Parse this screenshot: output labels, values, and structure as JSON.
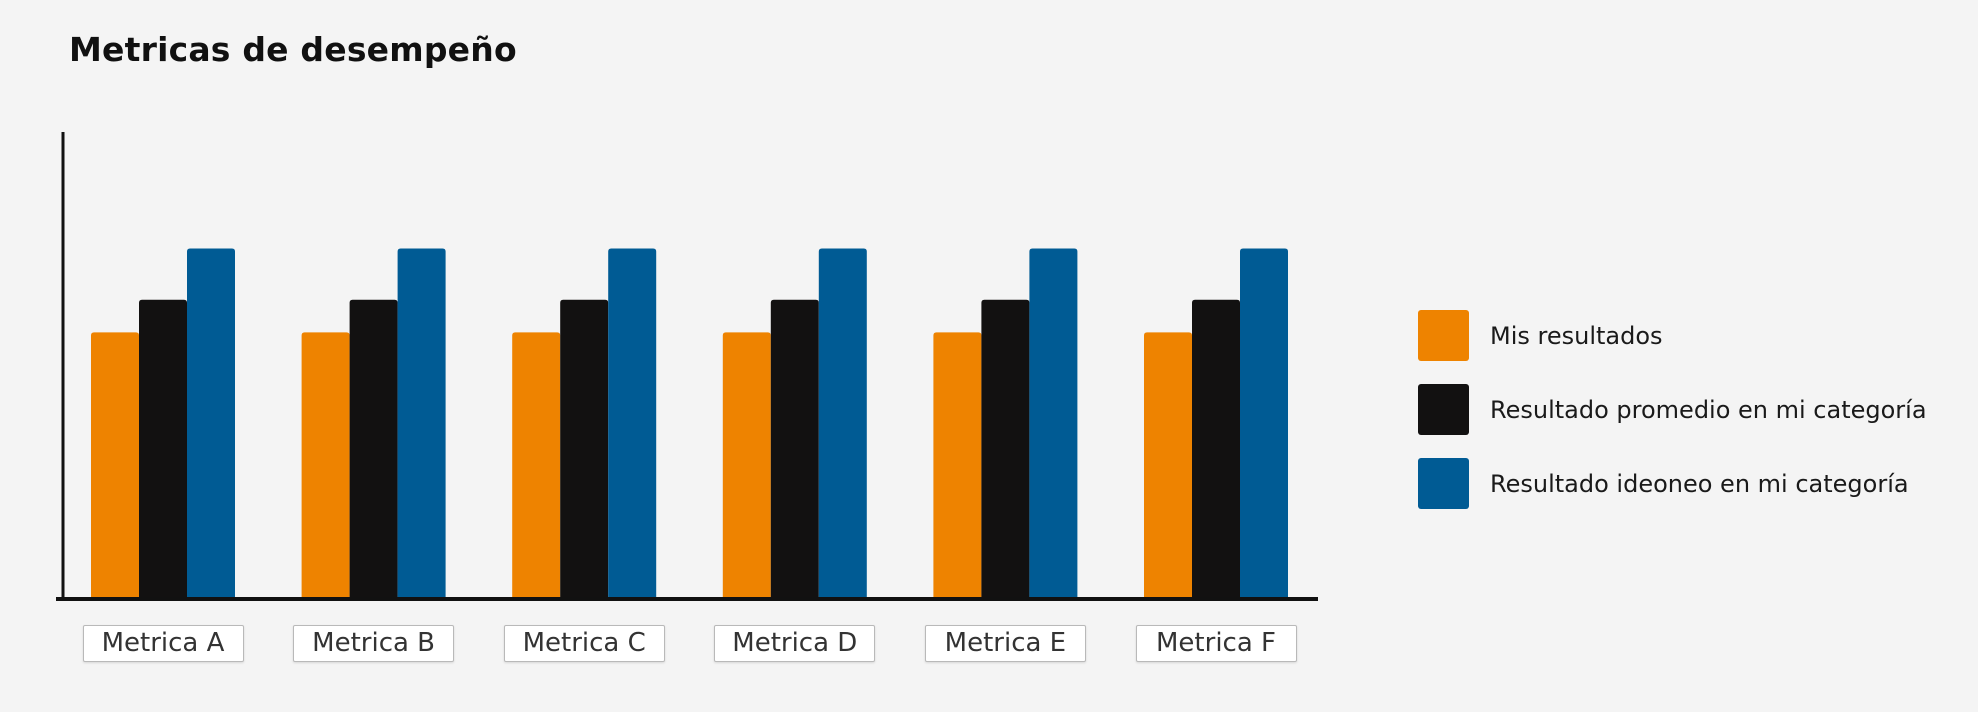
{
  "title": "Metricas de desempeño",
  "chart_data": {
    "type": "bar",
    "title": "Metricas de desempeño",
    "xlabel": "",
    "ylabel": "",
    "categories": [
      "Metrica A",
      "Metrica B",
      "Metrica C",
      "Metrica D",
      "Metrica E",
      "Metrica F"
    ],
    "series": [
      {
        "name": "Mis resultados",
        "color": "#ee8300",
        "values": [
          57,
          57,
          57,
          57,
          57,
          57
        ]
      },
      {
        "name": "Resultado promedio en mi categoría",
        "color": "#121111",
        "values": [
          64,
          64,
          64,
          64,
          64,
          64
        ]
      },
      {
        "name": "Resultado ideoneo en mi categoría",
        "color": "#005b94",
        "values": [
          75,
          75,
          75,
          75,
          75,
          75
        ]
      }
    ],
    "ylim": [
      0,
      100
    ],
    "grid": false,
    "legend_position": "right"
  }
}
